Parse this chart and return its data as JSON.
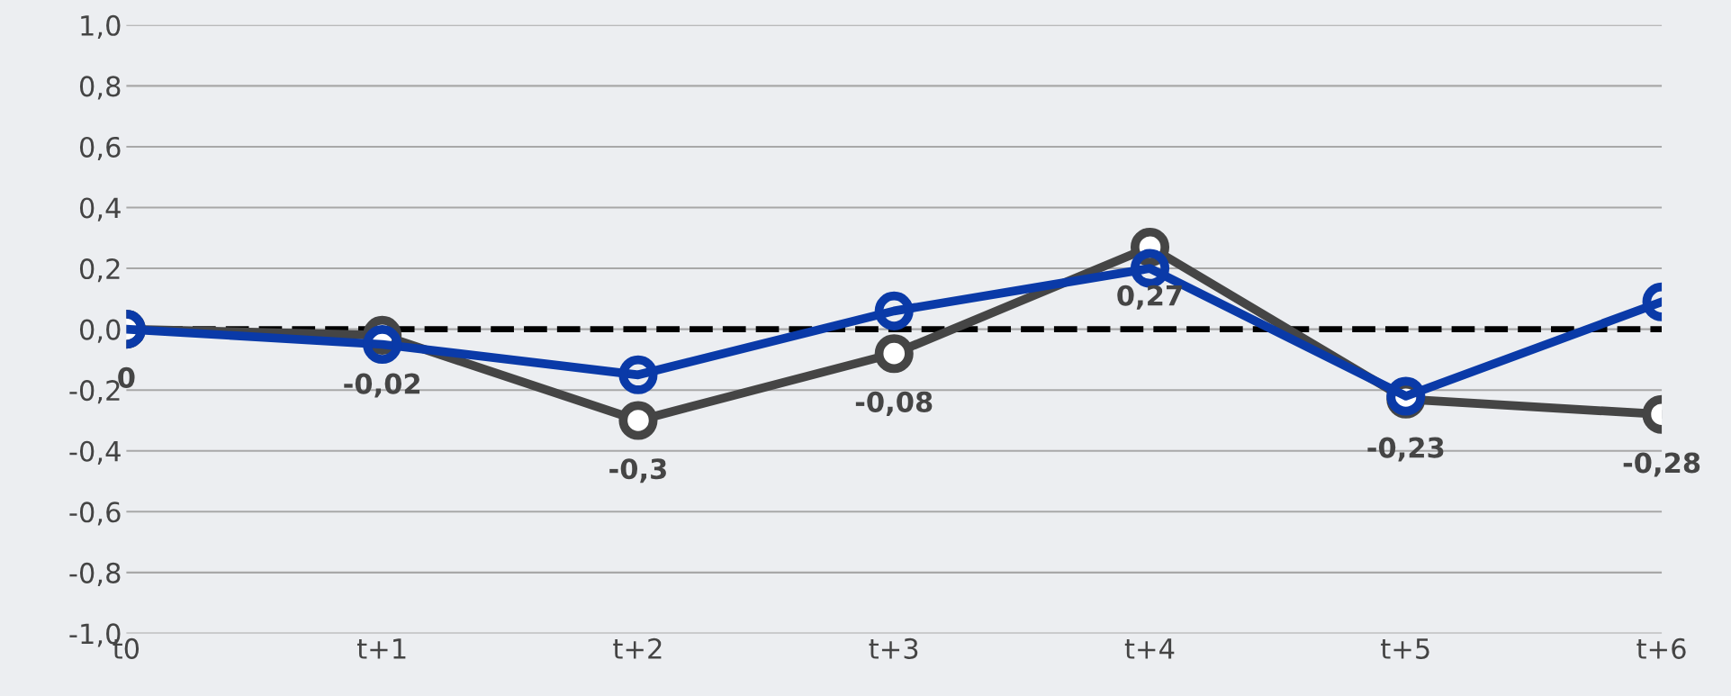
{
  "chart_data": {
    "type": "line",
    "categories": [
      "t0",
      "t+1",
      "t+2",
      "t+3",
      "t+4",
      "t+5",
      "t+6"
    ],
    "series": [
      {
        "color": "#454545",
        "values": [
          0,
          -0.02,
          -0.3,
          -0.08,
          0.27,
          -0.23,
          -0.28
        ],
        "value_labels": [
          "0",
          "-0,02",
          "-0,3",
          "-0,08",
          "0,27",
          "-0,23",
          "-0,28"
        ]
      },
      {
        "color": "#0a3aa8",
        "values": [
          0,
          -0.05,
          -0.15,
          0.06,
          0.2,
          -0.22,
          0.09
        ]
      }
    ],
    "ylim": [
      -1.0,
      1.0
    ],
    "yticks": [
      {
        "value": -1.0,
        "label": "-1,0"
      },
      {
        "value": -0.8,
        "label": "-0,8"
      },
      {
        "value": -0.6,
        "label": "-0,6"
      },
      {
        "value": -0.4,
        "label": "-0,4"
      },
      {
        "value": -0.2,
        "label": "-0,2"
      },
      {
        "value": 0,
        "label": "0,0"
      },
      {
        "value": 0.2,
        "label": "0,2"
      },
      {
        "value": 0.4,
        "label": "0,4"
      },
      {
        "value": 0.6,
        "label": "0,6"
      },
      {
        "value": 0.8,
        "label": "0,8"
      },
      {
        "value": 1.0,
        "label": "1,0"
      }
    ],
    "ref_lines": [
      {
        "axis": "y",
        "value": 0,
        "color": "#000000",
        "line_style": "dashed"
      }
    ],
    "grid": "y",
    "legend": false,
    "marker": "circle",
    "line_style": "solid"
  }
}
